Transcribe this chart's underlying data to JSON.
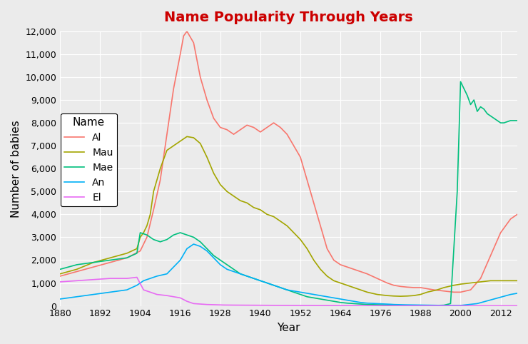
{
  "title": "Name Popularity Through Years",
  "xlabel": "Year",
  "ylabel": "Number of babies",
  "title_color": "#CC0000",
  "background_color": "#EBEBEB",
  "grid_color": "#FFFFFF",
  "legend_title": "Name",
  "names": [
    "Al",
    "Mau",
    "Mae",
    "An",
    "El"
  ],
  "colors": {
    "Al": "#F8766D",
    "Mau": "#A3A500",
    "Mae": "#00BF7D",
    "An": "#00B0F6",
    "El": "#E76BF3"
  },
  "ylim": [
    0,
    12000
  ],
  "yticks": [
    0,
    1000,
    2000,
    3000,
    4000,
    5000,
    6000,
    7000,
    8000,
    9000,
    10000,
    11000,
    12000
  ],
  "xticks": [
    1880,
    1892,
    1904,
    1916,
    1928,
    1940,
    1952,
    1964,
    1976,
    1988,
    2000,
    2012
  ]
}
